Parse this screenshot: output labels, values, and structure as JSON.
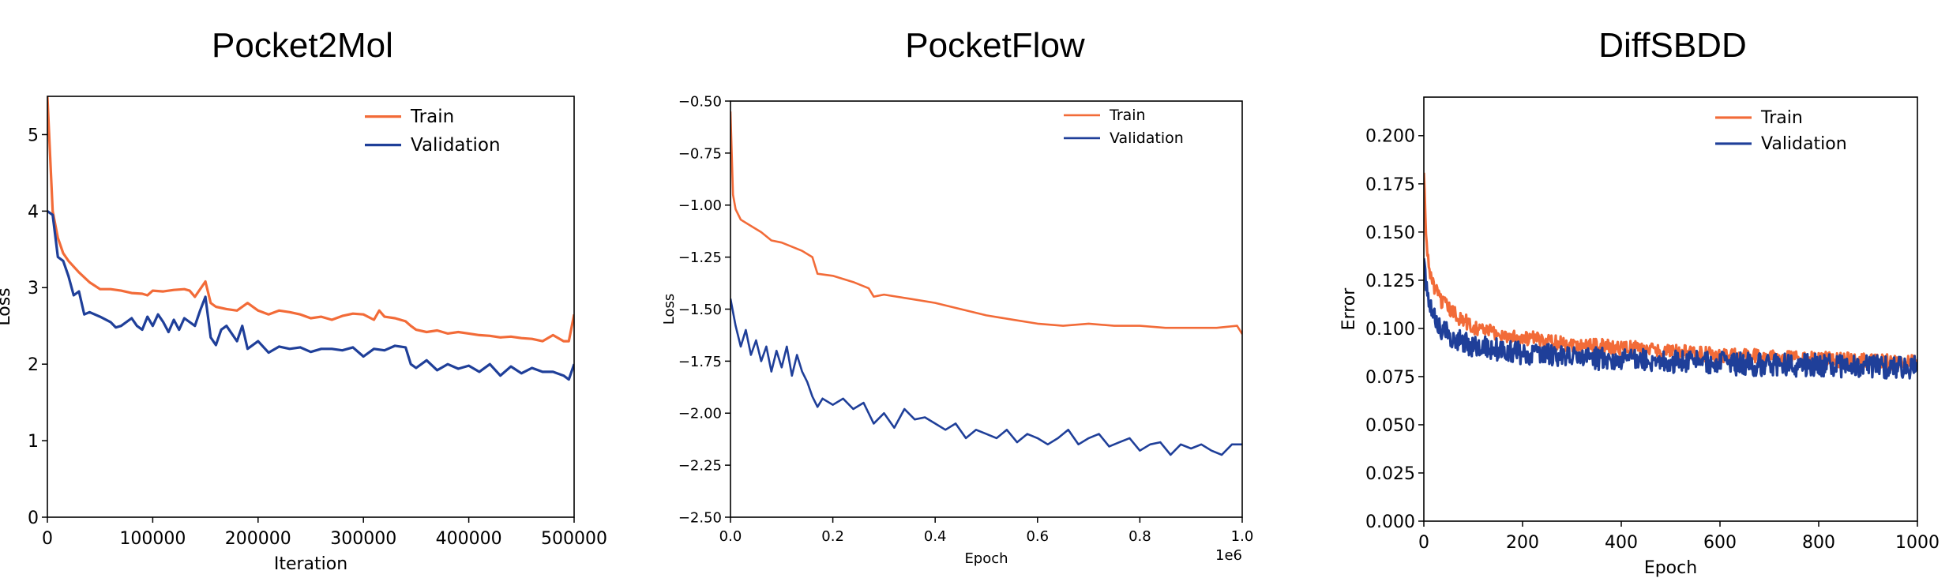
{
  "chart_data": [
    {
      "type": "line",
      "title": "Pocket2Mol",
      "xlabel": "Iteration",
      "ylabel": "Loss",
      "xlim": [
        0,
        500000
      ],
      "ylim": [
        0,
        5.5
      ],
      "xticks": [
        0,
        100000,
        200000,
        300000,
        400000,
        500000
      ],
      "xtick_labels": [
        "0",
        "100000",
        "200000",
        "300000",
        "400000",
        "500000"
      ],
      "yticks": [
        0,
        1,
        2,
        3,
        4,
        5
      ],
      "ytick_labels": [
        "0",
        "1",
        "2",
        "3",
        "4",
        "5"
      ],
      "grid": false,
      "legend": "top-right",
      "series": [
        {
          "name": "Train",
          "color": "#F26B38",
          "x": [
            0,
            5000,
            10000,
            15000,
            20000,
            30000,
            40000,
            50000,
            60000,
            70000,
            80000,
            90000,
            95000,
            100000,
            110000,
            120000,
            130000,
            135000,
            140000,
            150000,
            155000,
            160000,
            170000,
            180000,
            190000,
            200000,
            210000,
            220000,
            230000,
            240000,
            250000,
            260000,
            270000,
            280000,
            290000,
            300000,
            310000,
            315000,
            320000,
            330000,
            340000,
            345000,
            350000,
            360000,
            370000,
            380000,
            390000,
            400000,
            410000,
            420000,
            430000,
            440000,
            450000,
            460000,
            470000,
            480000,
            490000,
            495000,
            500000
          ],
          "y": [
            5.5,
            4.0,
            3.65,
            3.45,
            3.35,
            3.2,
            3.07,
            2.98,
            2.98,
            2.96,
            2.93,
            2.92,
            2.9,
            2.96,
            2.95,
            2.97,
            2.98,
            2.96,
            2.88,
            3.08,
            2.8,
            2.75,
            2.72,
            2.7,
            2.8,
            2.7,
            2.65,
            2.7,
            2.68,
            2.65,
            2.6,
            2.62,
            2.58,
            2.63,
            2.66,
            2.65,
            2.58,
            2.7,
            2.62,
            2.6,
            2.56,
            2.5,
            2.45,
            2.42,
            2.44,
            2.4,
            2.42,
            2.4,
            2.38,
            2.37,
            2.35,
            2.36,
            2.34,
            2.33,
            2.3,
            2.38,
            2.3,
            2.3,
            2.65
          ]
        },
        {
          "name": "Validation",
          "color": "#1F3F99",
          "x": [
            0,
            5000,
            10000,
            15000,
            20000,
            25000,
            30000,
            35000,
            40000,
            50000,
            60000,
            65000,
            70000,
            80000,
            85000,
            90000,
            95000,
            100000,
            105000,
            110000,
            115000,
            120000,
            125000,
            130000,
            140000,
            145000,
            150000,
            155000,
            160000,
            165000,
            170000,
            180000,
            185000,
            190000,
            200000,
            210000,
            220000,
            230000,
            240000,
            250000,
            260000,
            270000,
            280000,
            290000,
            300000,
            310000,
            320000,
            330000,
            340000,
            345000,
            350000,
            360000,
            370000,
            380000,
            390000,
            400000,
            410000,
            420000,
            430000,
            440000,
            450000,
            460000,
            470000,
            480000,
            490000,
            495000,
            500000
          ],
          "y": [
            4.0,
            3.95,
            3.4,
            3.35,
            3.15,
            2.9,
            2.95,
            2.65,
            2.68,
            2.62,
            2.55,
            2.48,
            2.5,
            2.6,
            2.5,
            2.45,
            2.62,
            2.5,
            2.65,
            2.55,
            2.42,
            2.58,
            2.45,
            2.6,
            2.5,
            2.7,
            2.88,
            2.35,
            2.25,
            2.45,
            2.5,
            2.3,
            2.5,
            2.2,
            2.3,
            2.15,
            2.23,
            2.2,
            2.22,
            2.16,
            2.2,
            2.2,
            2.18,
            2.22,
            2.1,
            2.2,
            2.18,
            2.24,
            2.22,
            2.0,
            1.95,
            2.05,
            1.92,
            2.0,
            1.94,
            1.98,
            1.9,
            2.0,
            1.85,
            1.97,
            1.88,
            1.95,
            1.9,
            1.9,
            1.85,
            1.8,
            2.0
          ]
        }
      ]
    },
    {
      "type": "line",
      "title": "PocketFlow",
      "xlabel": "Epoch",
      "ylabel": "Loss",
      "x_offset_label": "1e6",
      "xlim": [
        0,
        1.0
      ],
      "ylim": [
        -2.5,
        -0.5
      ],
      "xticks": [
        0,
        0.2,
        0.4,
        0.6,
        0.8,
        1.0
      ],
      "xtick_labels": [
        "0.0",
        "0.2",
        "0.4",
        "0.6",
        "0.8",
        "1.0"
      ],
      "yticks": [
        -2.5,
        -2.25,
        -2.0,
        -1.75,
        -1.5,
        -1.25,
        -1.0,
        -0.75,
        -0.5
      ],
      "ytick_labels": [
        "−2.50",
        "−2.25",
        "−2.00",
        "−1.75",
        "−1.50",
        "−1.25",
        "−1.00",
        "−0.75",
        "−0.50"
      ],
      "grid": false,
      "legend": "top-right",
      "series": [
        {
          "name": "Train",
          "color": "#F26B38",
          "x": [
            0,
            0.005,
            0.01,
            0.02,
            0.04,
            0.06,
            0.08,
            0.1,
            0.12,
            0.14,
            0.16,
            0.17,
            0.2,
            0.24,
            0.27,
            0.28,
            0.3,
            0.35,
            0.4,
            0.45,
            0.5,
            0.55,
            0.6,
            0.65,
            0.7,
            0.75,
            0.8,
            0.85,
            0.9,
            0.95,
            0.99,
            1.0
          ],
          "y": [
            -0.55,
            -0.95,
            -1.02,
            -1.07,
            -1.1,
            -1.13,
            -1.17,
            -1.18,
            -1.2,
            -1.22,
            -1.25,
            -1.33,
            -1.34,
            -1.37,
            -1.4,
            -1.44,
            -1.43,
            -1.45,
            -1.47,
            -1.5,
            -1.53,
            -1.55,
            -1.57,
            -1.58,
            -1.57,
            -1.58,
            -1.58,
            -1.59,
            -1.59,
            -1.59,
            -1.58,
            -1.62
          ]
        },
        {
          "name": "Validation",
          "color": "#1F3F99",
          "x": [
            0,
            0.01,
            0.02,
            0.03,
            0.04,
            0.05,
            0.06,
            0.07,
            0.08,
            0.09,
            0.1,
            0.11,
            0.12,
            0.13,
            0.14,
            0.15,
            0.16,
            0.17,
            0.18,
            0.2,
            0.22,
            0.24,
            0.26,
            0.28,
            0.3,
            0.32,
            0.34,
            0.36,
            0.38,
            0.4,
            0.42,
            0.44,
            0.46,
            0.48,
            0.5,
            0.52,
            0.54,
            0.56,
            0.58,
            0.6,
            0.62,
            0.64,
            0.66,
            0.68,
            0.7,
            0.72,
            0.74,
            0.76,
            0.78,
            0.8,
            0.82,
            0.84,
            0.86,
            0.88,
            0.9,
            0.92,
            0.94,
            0.96,
            0.98,
            1.0
          ],
          "y": [
            -1.45,
            -1.58,
            -1.68,
            -1.6,
            -1.72,
            -1.65,
            -1.75,
            -1.68,
            -1.8,
            -1.7,
            -1.78,
            -1.68,
            -1.82,
            -1.72,
            -1.8,
            -1.85,
            -1.92,
            -1.97,
            -1.93,
            -1.96,
            -1.93,
            -1.98,
            -1.95,
            -2.05,
            -2.0,
            -2.07,
            -1.98,
            -2.03,
            -2.02,
            -2.05,
            -2.08,
            -2.05,
            -2.12,
            -2.08,
            -2.1,
            -2.12,
            -2.08,
            -2.14,
            -2.1,
            -2.12,
            -2.15,
            -2.12,
            -2.08,
            -2.15,
            -2.12,
            -2.1,
            -2.16,
            -2.14,
            -2.12,
            -2.18,
            -2.15,
            -2.14,
            -2.2,
            -2.15,
            -2.17,
            -2.15,
            -2.18,
            -2.2,
            -2.15,
            -2.15
          ]
        }
      ]
    },
    {
      "type": "line",
      "title": "DiffSBDD",
      "xlabel": "Epoch",
      "ylabel": "Error",
      "xlim": [
        0,
        1000
      ],
      "ylim": [
        0,
        0.22
      ],
      "xticks": [
        0,
        200,
        400,
        600,
        800,
        1000
      ],
      "xtick_labels": [
        "0",
        "200",
        "400",
        "600",
        "800",
        "1000"
      ],
      "yticks": [
        0,
        0.025,
        0.05,
        0.075,
        0.1,
        0.125,
        0.15,
        0.175,
        0.2
      ],
      "ytick_labels": [
        "0.000",
        "0.025",
        "0.050",
        "0.075",
        "0.100",
        "0.125",
        "0.150",
        "0.175",
        "0.200"
      ],
      "grid": false,
      "legend": "top-right",
      "series": [
        {
          "name": "Train",
          "color": "#F26B38",
          "x": [
            0,
            5,
            10,
            20,
            30,
            50,
            75,
            100,
            150,
            200,
            300,
            400,
            500,
            600,
            700,
            800,
            900,
            1000
          ],
          "y": [
            0.18,
            0.145,
            0.132,
            0.122,
            0.116,
            0.11,
            0.105,
            0.101,
            0.097,
            0.095,
            0.092,
            0.09,
            0.088,
            0.086,
            0.085,
            0.084,
            0.083,
            0.082
          ],
          "noise": 0.004
        },
        {
          "name": "Validation",
          "color": "#1F3F99",
          "x": [
            0,
            5,
            10,
            20,
            30,
            50,
            75,
            100,
            150,
            200,
            300,
            400,
            500,
            600,
            700,
            800,
            900,
            1000
          ],
          "y": [
            0.14,
            0.122,
            0.114,
            0.106,
            0.101,
            0.097,
            0.094,
            0.091,
            0.089,
            0.087,
            0.085,
            0.084,
            0.083,
            0.082,
            0.081,
            0.081,
            0.08,
            0.08
          ],
          "noise": 0.006
        }
      ]
    }
  ]
}
